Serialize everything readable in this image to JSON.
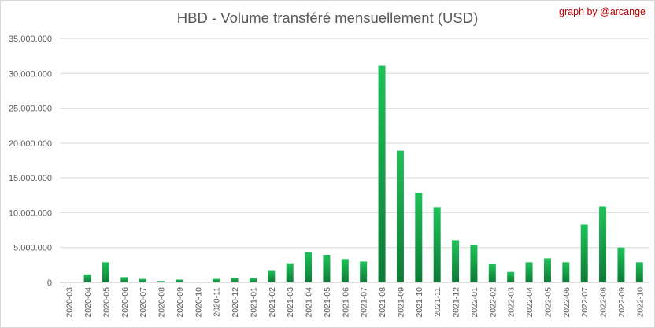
{
  "chart_data": {
    "type": "bar",
    "title": "HBD - Volume transféré mensuellement (USD)",
    "credit": "graph by @arcange",
    "xlabel": "",
    "ylabel": "",
    "ylim": [
      0,
      35000000
    ],
    "yticks": [
      0,
      5000000,
      10000000,
      15000000,
      20000000,
      25000000,
      30000000,
      35000000
    ],
    "ytick_labels": [
      "0",
      "5.000.000",
      "10.000.000",
      "15.000.000",
      "20.000.000",
      "25.000.000",
      "30.000.000",
      "35.000.000"
    ],
    "grid": true,
    "legend": "none",
    "bar_color_top": "#1fc05a",
    "bar_color_bottom": "#0e7a36",
    "categories": [
      "2020-03",
      "2020-04",
      "2020-05",
      "2020-06",
      "2020-07",
      "2020-08",
      "2020-09",
      "2020-10",
      "2020-11",
      "2020-12",
      "2021-01",
      "2021-02",
      "2021-03",
      "2021-04",
      "2021-05",
      "2021-06",
      "2021-07",
      "2021-08",
      "2021-09",
      "2021-10",
      "2021-11",
      "2021-12",
      "2022-01",
      "2022-02",
      "2022-03",
      "2022-04",
      "2022-05",
      "2022-06",
      "2022-07",
      "2022-08",
      "2022-09",
      "2022-10"
    ],
    "values": [
      0,
      1150000,
      2900000,
      750000,
      500000,
      200000,
      400000,
      0,
      500000,
      650000,
      620000,
      1750000,
      2750000,
      4350000,
      3950000,
      3350000,
      3000000,
      31100000,
      18900000,
      12850000,
      10800000,
      6050000,
      5350000,
      2650000,
      1500000,
      2900000,
      3450000,
      2900000,
      8300000,
      10900000,
      5000000,
      2900000
    ]
  }
}
